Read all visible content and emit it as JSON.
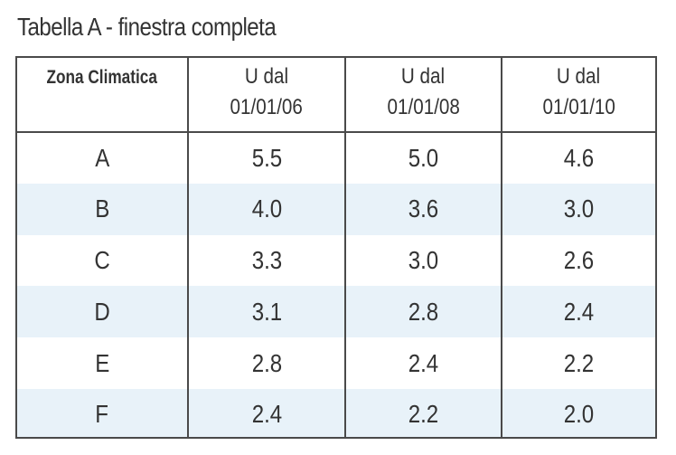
{
  "caption": "Tabella A - finestra completa",
  "table": {
    "headers": [
      {
        "line1": "Zona Climatica",
        "line2": ""
      },
      {
        "line1": "U dal",
        "line2": "01/01/06"
      },
      {
        "line1": "U dal",
        "line2": "01/01/08"
      },
      {
        "line1": "U dal",
        "line2": "01/01/10"
      }
    ],
    "rows": [
      [
        "A",
        "5.5",
        "5.0",
        "4.6"
      ],
      [
        "B",
        "4.0",
        "3.6",
        "3.0"
      ],
      [
        "C",
        "3.3",
        "3.0",
        "2.6"
      ],
      [
        "D",
        "3.1",
        "2.8",
        "2.4"
      ],
      [
        "E",
        "2.8",
        "2.4",
        "2.2"
      ],
      [
        "F",
        "2.4",
        "2.2",
        "2.0"
      ]
    ]
  },
  "colors": {
    "border": "#4a4a4a",
    "stripe": "#e8f2f9",
    "text": "#333333"
  }
}
